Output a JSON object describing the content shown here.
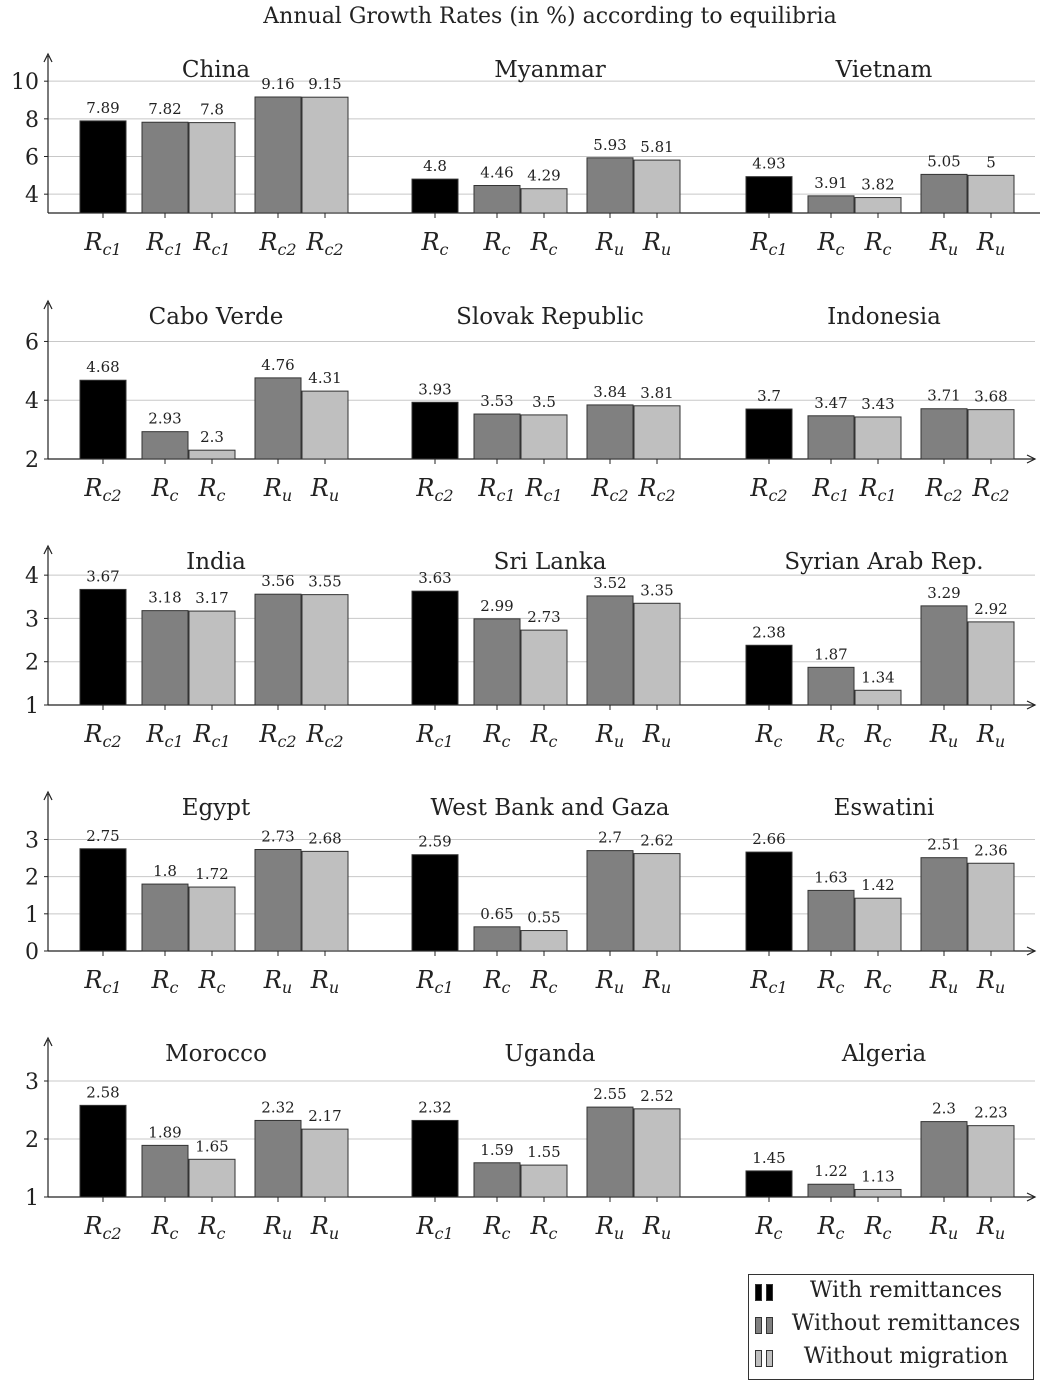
{
  "title": "Annual Growth Rates (in %) according to equilibria",
  "colors": {
    "with_remittances": "#000000",
    "without_remittances": "#808080",
    "without_migration": "#bfbfbf"
  },
  "legend": {
    "placement": "bottom-right",
    "items": [
      {
        "label": "With remittances",
        "color": "#000000"
      },
      {
        "label": "Without remittances",
        "color": "#808080"
      },
      {
        "label": "Without migration",
        "color": "#bfbfbf"
      }
    ]
  },
  "chart_data": [
    {
      "type": "bar",
      "ylim": [
        3,
        10.7
      ],
      "yticks": [
        4,
        6,
        8,
        10
      ],
      "grid": true,
      "x_axis_arrow": false,
      "groups": [
        {
          "name": "China",
          "values": [
            7.89,
            7.82,
            7.8,
            9.16,
            9.15
          ],
          "value_labels": [
            "7.89",
            "7.82",
            "7.8",
            "9.16",
            "9.15"
          ],
          "equilibria": [
            [
              "R",
              "c1"
            ],
            [
              "R",
              "c1"
            ],
            [
              "R",
              "c1"
            ],
            [
              "R",
              "c2"
            ],
            [
              "R",
              "c2"
            ]
          ]
        },
        {
          "name": "Myanmar",
          "values": [
            4.8,
            4.46,
            4.29,
            5.93,
            5.81
          ],
          "value_labels": [
            "4.8",
            "4.46",
            "4.29",
            "5.93",
            "5.81"
          ],
          "equilibria": [
            [
              "R",
              "c"
            ],
            [
              "R",
              "c"
            ],
            [
              "R",
              "c"
            ],
            [
              "R",
              "u"
            ],
            [
              "R",
              "u"
            ]
          ]
        },
        {
          "name": "Vietnam",
          "values": [
            4.93,
            3.91,
            3.82,
            5.05,
            5
          ],
          "value_labels": [
            "4.93",
            "3.91",
            "3.82",
            "5.05",
            "5"
          ],
          "equilibria": [
            [
              "R",
              "c1"
            ],
            [
              "R",
              "c"
            ],
            [
              "R",
              "c"
            ],
            [
              "R",
              "u"
            ],
            [
              "R",
              "u"
            ]
          ]
        }
      ]
    },
    {
      "type": "bar",
      "ylim": [
        2,
        6.9
      ],
      "yticks": [
        2,
        4,
        6
      ],
      "grid": true,
      "x_axis_arrow": true,
      "groups": [
        {
          "name": "Cabo Verde",
          "values": [
            4.68,
            2.93,
            2.3,
            4.76,
            4.31
          ],
          "value_labels": [
            "4.68",
            "2.93",
            "2.3",
            "4.76",
            "4.31"
          ],
          "equilibria": [
            [
              "R",
              "c2"
            ],
            [
              "R",
              "c"
            ],
            [
              "R",
              "c"
            ],
            [
              "R",
              "u"
            ],
            [
              "R",
              "u"
            ]
          ]
        },
        {
          "name": "Slovak Republic",
          "values": [
            3.93,
            3.53,
            3.5,
            3.84,
            3.81
          ],
          "value_labels": [
            "3.93",
            "3.53",
            "3.5",
            "3.84",
            "3.81"
          ],
          "equilibria": [
            [
              "R",
              "c2"
            ],
            [
              "R",
              "c1"
            ],
            [
              "R",
              "c1"
            ],
            [
              "R",
              "c2"
            ],
            [
              "R",
              "c2"
            ]
          ]
        },
        {
          "name": "Indonesia",
          "values": [
            3.7,
            3.47,
            3.43,
            3.71,
            3.68
          ],
          "value_labels": [
            "3.7",
            "3.47",
            "3.43",
            "3.71",
            "3.68"
          ],
          "equilibria": [
            [
              "R",
              "c2"
            ],
            [
              "R",
              "c1"
            ],
            [
              "R",
              "c1"
            ],
            [
              "R",
              "c2"
            ],
            [
              "R",
              "c2"
            ]
          ]
        }
      ]
    },
    {
      "type": "bar",
      "ylim": [
        1,
        4.35
      ],
      "yticks": [
        1,
        2,
        3,
        4
      ],
      "grid": true,
      "x_axis_arrow": true,
      "groups": [
        {
          "name": "India",
          "values": [
            3.67,
            3.18,
            3.17,
            3.56,
            3.55
          ],
          "value_labels": [
            "3.67",
            "3.18",
            "3.17",
            "3.56",
            "3.55"
          ],
          "equilibria": [
            [
              "R",
              "c2"
            ],
            [
              "R",
              "c1"
            ],
            [
              "R",
              "c1"
            ],
            [
              "R",
              "c2"
            ],
            [
              "R",
              "c2"
            ]
          ]
        },
        {
          "name": "Sri Lanka",
          "values": [
            3.63,
            2.99,
            2.73,
            3.52,
            3.35
          ],
          "value_labels": [
            "3.63",
            "2.99",
            "2.73",
            "3.52",
            "3.35"
          ],
          "equilibria": [
            [
              "R",
              "c1"
            ],
            [
              "R",
              "c"
            ],
            [
              "R",
              "c"
            ],
            [
              "R",
              "u"
            ],
            [
              "R",
              "u"
            ]
          ]
        },
        {
          "name": "Syrian Arab Rep.",
          "values": [
            2.38,
            1.87,
            1.34,
            3.29,
            2.92
          ],
          "value_labels": [
            "2.38",
            "1.87",
            "1.34",
            "3.29",
            "2.92"
          ],
          "equilibria": [
            [
              "R",
              "c"
            ],
            [
              "R",
              "c"
            ],
            [
              "R",
              "c"
            ],
            [
              "R",
              "u"
            ],
            [
              "R",
              "u"
            ]
          ]
        }
      ]
    },
    {
      "type": "bar",
      "ylim": [
        0,
        3.9
      ],
      "yticks": [
        0,
        1,
        2,
        3
      ],
      "grid": true,
      "x_axis_arrow": true,
      "groups": [
        {
          "name": "Egypt",
          "values": [
            2.75,
            1.8,
            1.72,
            2.73,
            2.68
          ],
          "value_labels": [
            "2.75",
            "1.8",
            "1.72",
            "2.73",
            "2.68"
          ],
          "equilibria": [
            [
              "R",
              "c1"
            ],
            [
              "R",
              "c"
            ],
            [
              "R",
              "c"
            ],
            [
              "R",
              "u"
            ],
            [
              "R",
              "u"
            ]
          ]
        },
        {
          "name": "West Bank and Gaza",
          "values": [
            2.59,
            0.65,
            0.55,
            2.7,
            2.62
          ],
          "value_labels": [
            "2.59",
            "0.65",
            "0.55",
            "2.7",
            "2.62"
          ],
          "equilibria": [
            [
              "R",
              "c1"
            ],
            [
              "R",
              "c"
            ],
            [
              "R",
              "c"
            ],
            [
              "R",
              "u"
            ],
            [
              "R",
              "u"
            ]
          ]
        },
        {
          "name": "Eswatini",
          "values": [
            2.66,
            1.63,
            1.42,
            2.51,
            2.36
          ],
          "value_labels": [
            "2.66",
            "1.63",
            "1.42",
            "2.51",
            "2.36"
          ],
          "equilibria": [
            [
              "R",
              "c1"
            ],
            [
              "R",
              "c"
            ],
            [
              "R",
              "c"
            ],
            [
              "R",
              "u"
            ],
            [
              "R",
              "u"
            ]
          ]
        }
      ]
    },
    {
      "type": "bar",
      "ylim": [
        1,
        3.5
      ],
      "yticks": [
        1,
        2,
        3
      ],
      "grid": true,
      "x_axis_arrow": true,
      "groups": [
        {
          "name": "Morocco",
          "values": [
            2.58,
            1.89,
            1.65,
            2.32,
            2.17
          ],
          "value_labels": [
            "2.58",
            "1.89",
            "1.65",
            "2.32",
            "2.17"
          ],
          "equilibria": [
            [
              "R",
              "c2"
            ],
            [
              "R",
              "c"
            ],
            [
              "R",
              "c"
            ],
            [
              "R",
              "u"
            ],
            [
              "R",
              "u"
            ]
          ]
        },
        {
          "name": "Uganda",
          "values": [
            2.32,
            1.59,
            1.55,
            2.55,
            2.52
          ],
          "value_labels": [
            "2.32",
            "1.59",
            "1.55",
            "2.55",
            "2.52"
          ],
          "equilibria": [
            [
              "R",
              "c1"
            ],
            [
              "R",
              "c"
            ],
            [
              "R",
              "c"
            ],
            [
              "R",
              "u"
            ],
            [
              "R",
              "u"
            ]
          ]
        },
        {
          "name": "Algeria",
          "values": [
            1.45,
            1.22,
            1.13,
            2.3,
            2.23
          ],
          "value_labels": [
            "1.45",
            "1.22",
            "1.13",
            "2.3",
            "2.23"
          ],
          "equilibria": [
            [
              "R",
              "c"
            ],
            [
              "R",
              "c"
            ],
            [
              "R",
              "c"
            ],
            [
              "R",
              "u"
            ],
            [
              "R",
              "u"
            ]
          ]
        }
      ]
    }
  ]
}
